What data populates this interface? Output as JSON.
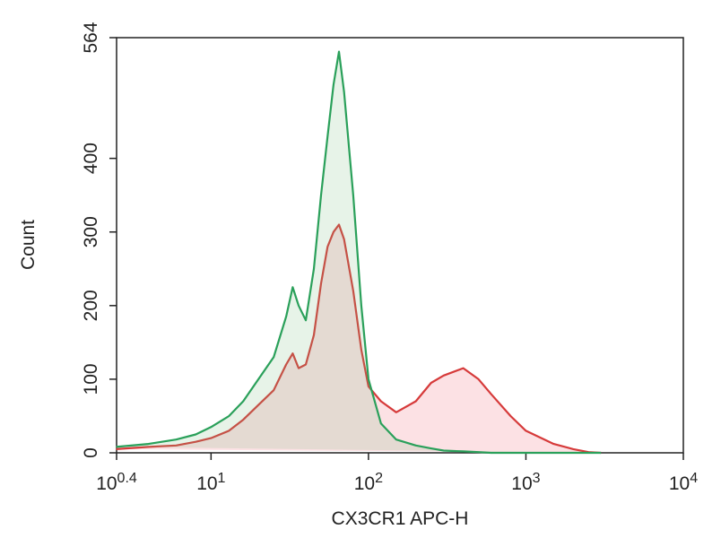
{
  "chart_data": {
    "type": "histogram-overlay",
    "x_label": "CX3CR1 APC-H",
    "y_label": "Count",
    "x_log": true,
    "xlim": [
      2.5119,
      10000
    ],
    "ylim": [
      0,
      564
    ],
    "xticks": [
      {
        "value": 2.5119,
        "label": "10^0.4"
      },
      {
        "value": 10,
        "label": "10^1"
      },
      {
        "value": 100,
        "label": "10^2"
      },
      {
        "value": 1000,
        "label": "10^3"
      },
      {
        "value": 10000,
        "label": "10^4"
      }
    ],
    "yticks": [
      0,
      100,
      200,
      300,
      400,
      564
    ],
    "x": [
      2.5,
      4,
      6,
      8,
      10,
      13,
      16,
      20,
      25,
      30,
      33,
      36,
      40,
      45,
      50,
      55,
      60,
      65,
      70,
      80,
      90,
      100,
      120,
      150,
      200,
      250,
      300,
      400,
      500,
      600,
      800,
      1000,
      1500,
      2000,
      2500,
      3000
    ],
    "series": [
      {
        "color": "#d63a3a",
        "fill": "rgba(240,120,130,0.22)",
        "values": [
          5,
          8,
          10,
          15,
          20,
          30,
          45,
          65,
          85,
          120,
          135,
          115,
          120,
          160,
          230,
          280,
          300,
          310,
          290,
          220,
          140,
          90,
          70,
          55,
          70,
          95,
          105,
          115,
          100,
          80,
          50,
          30,
          12,
          5,
          1,
          0
        ]
      },
      {
        "color": "#2aa05a",
        "fill": "rgba(120,190,130,0.18)",
        "values": [
          8,
          12,
          18,
          25,
          35,
          50,
          70,
          100,
          130,
          185,
          225,
          200,
          180,
          250,
          350,
          430,
          500,
          545,
          490,
          350,
          200,
          100,
          40,
          18,
          10,
          6,
          3,
          2,
          1,
          0,
          0,
          0,
          0,
          0,
          0,
          0
        ]
      }
    ]
  }
}
